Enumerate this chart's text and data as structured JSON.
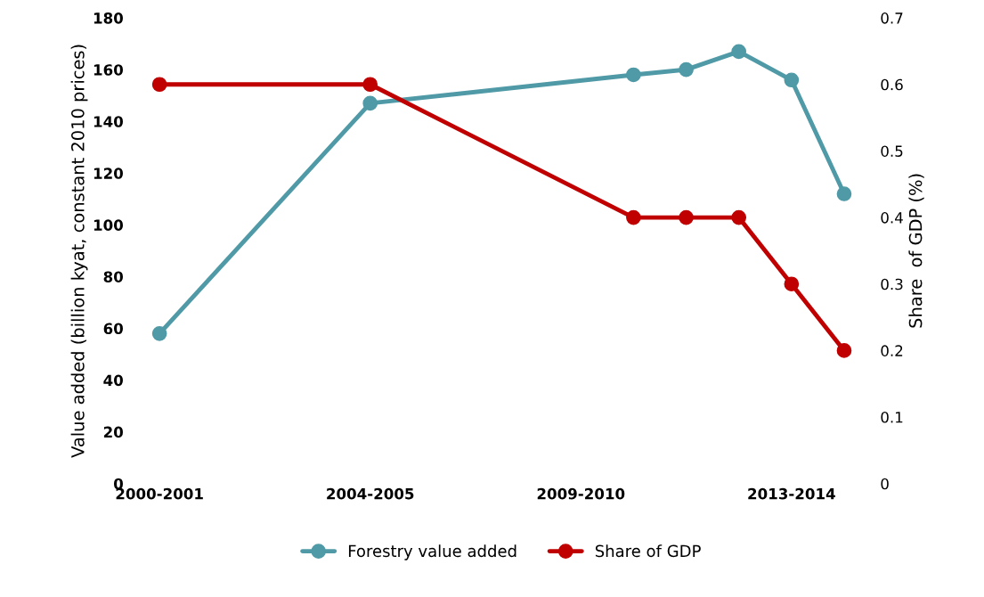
{
  "chart_data": {
    "type": "line",
    "ylabel": "Value added (billion kyat, constant 2010 prices)",
    "y2label": "Share  of GDP (%)",
    "categories": [
      "2000-2001",
      null,
      null,
      null,
      "2004-2005",
      null,
      null,
      null,
      "2009-2010",
      null,
      null,
      null,
      "2013-2014",
      null
    ],
    "series": [
      {
        "name": "Forestry value added",
        "color": "#4f9aa6",
        "values": [
          58,
          null,
          null,
          null,
          147,
          null,
          null,
          null,
          null,
          158,
          160,
          167,
          156,
          112
        ]
      },
      {
        "name": "Share of GDP",
        "color": "#c00000",
        "axis": "y2",
        "values": [
          0.6,
          null,
          null,
          null,
          0.6,
          null,
          null,
          null,
          null,
          0.4,
          0.4,
          0.4,
          0.3,
          0.2
        ]
      }
    ],
    "ylim": [
      0,
      180
    ],
    "yticks": [
      0,
      20,
      40,
      60,
      80,
      100,
      120,
      140,
      160,
      180
    ],
    "y2lim": [
      0,
      0.7
    ],
    "y2ticks": [
      0,
      0.1,
      0.2,
      0.3,
      0.4,
      0.5,
      0.6,
      0.7
    ],
    "grid": false,
    "legend": "bottom",
    "marker": "circle",
    "line_style": "solid"
  }
}
